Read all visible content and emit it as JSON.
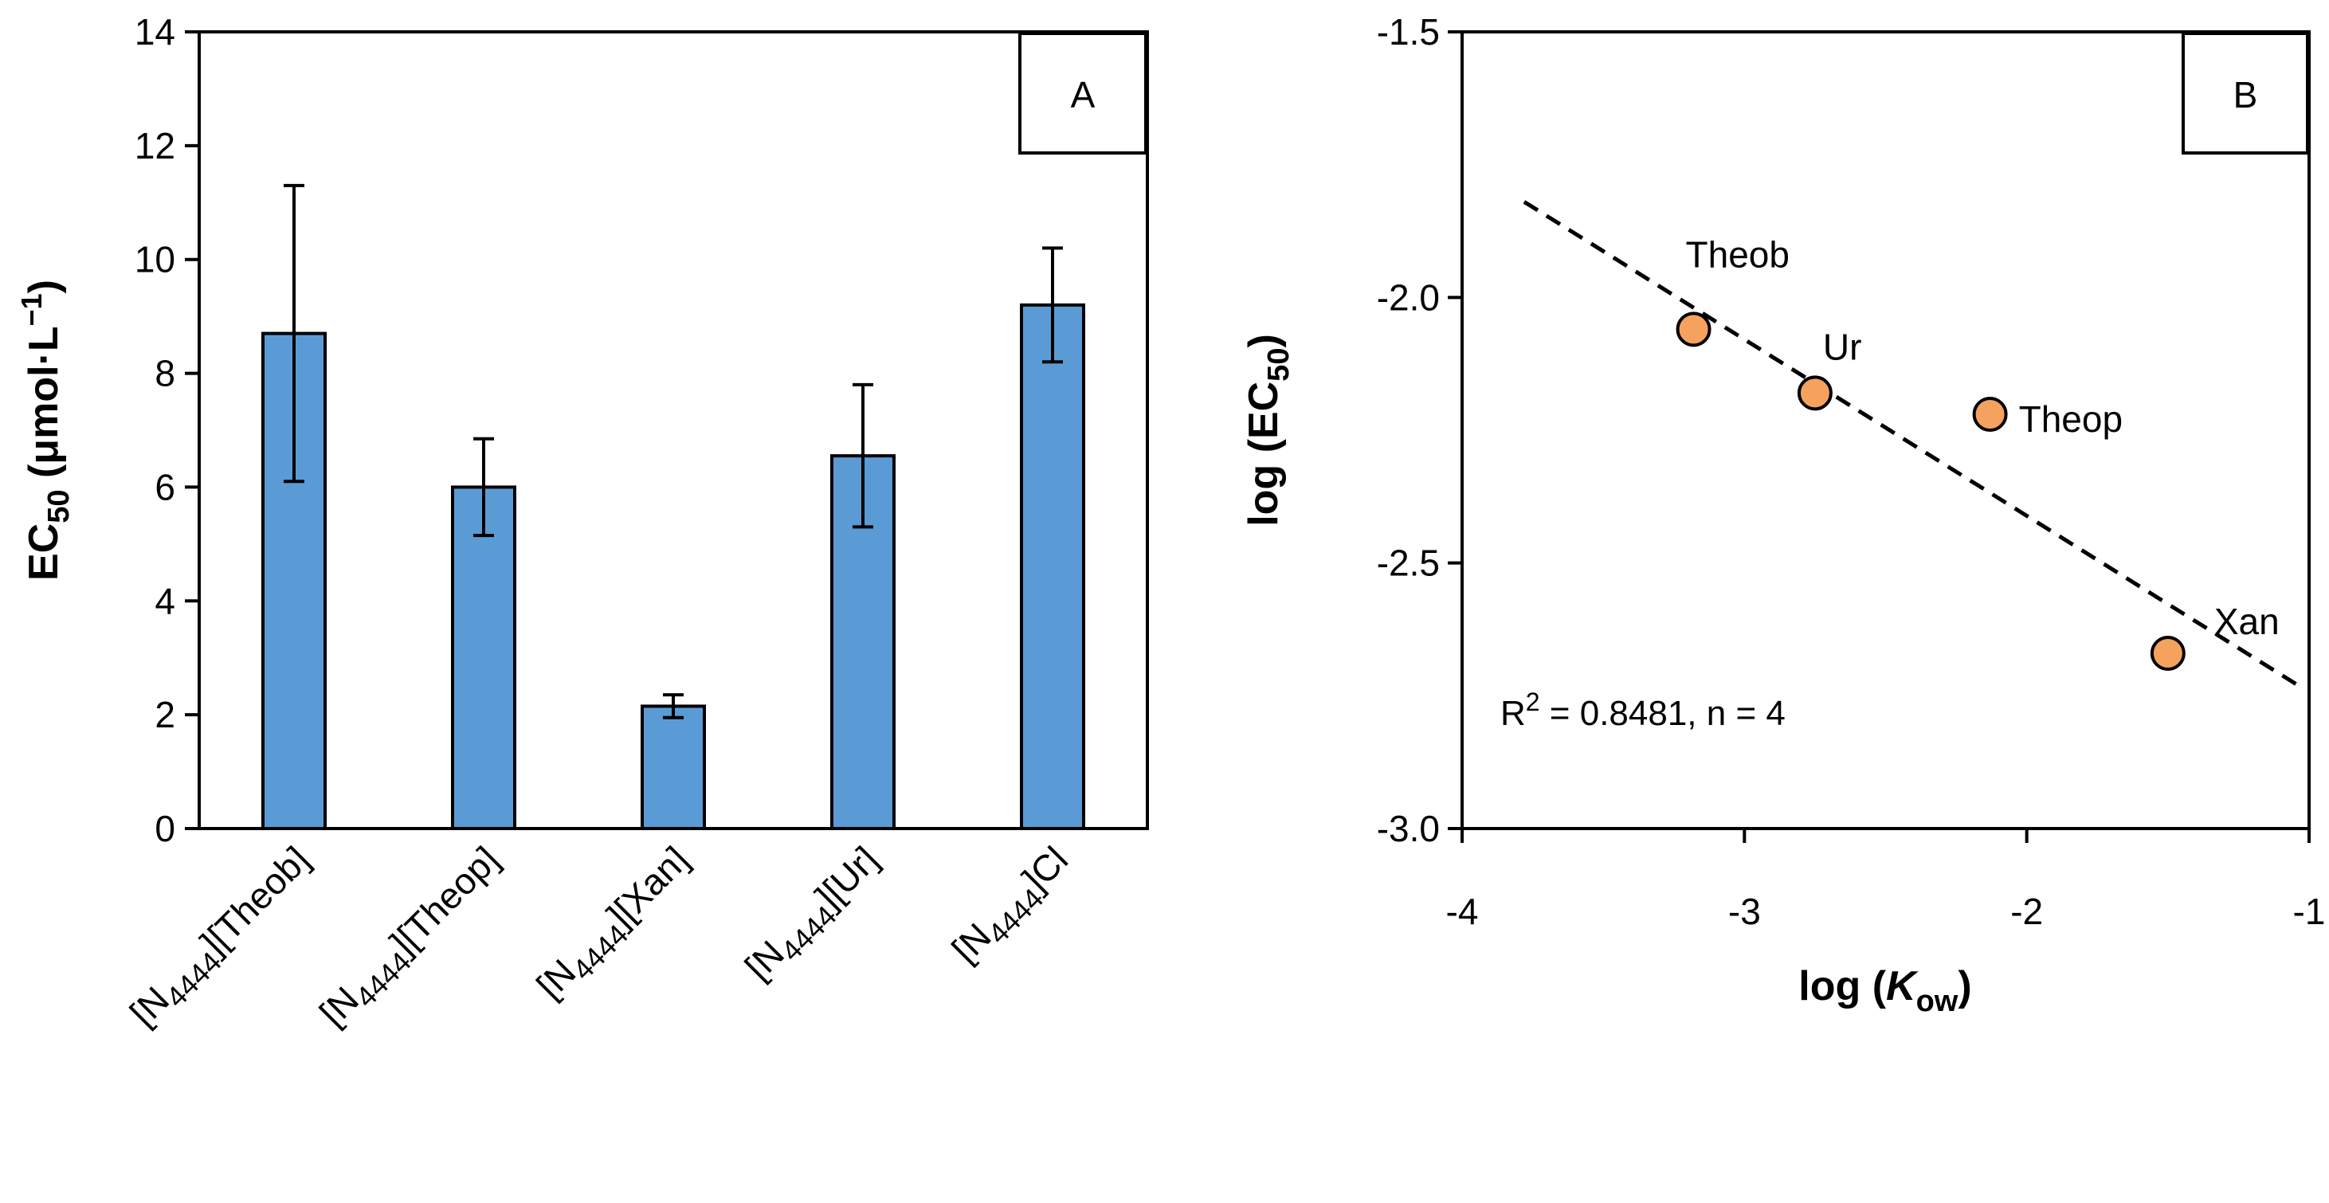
{
  "colors": {
    "bar_fill": "#5b9bd5",
    "bar_stroke": "#000000",
    "point_fill": "#f4a25e",
    "point_stroke": "#000000",
    "trend": "#000000"
  },
  "chart_data": [
    {
      "panel": "A",
      "type": "bar",
      "ylabel": {
        "main": "EC",
        "sub": "50",
        "rest": " (μmol·L",
        "sup": "−1",
        "close": ")"
      },
      "ylim": [
        0,
        14
      ],
      "yticks": [
        0,
        2,
        4,
        6,
        8,
        10,
        12,
        14
      ],
      "categories": [
        {
          "pre": "[N",
          "sub": "4444",
          "post": "][Theob]"
        },
        {
          "pre": "[N",
          "sub": "4444",
          "post": "][Theop]"
        },
        {
          "pre": "[N",
          "sub": "4444",
          "post": "][Xan]"
        },
        {
          "pre": "[N",
          "sub": "4444",
          "post": "][Ur]"
        },
        {
          "pre": "[N",
          "sub": "4444",
          "post": "]Cl"
        }
      ],
      "values": [
        8.7,
        6.0,
        2.15,
        6.55,
        9.2
      ],
      "errors": [
        2.6,
        0.85,
        0.2,
        1.25,
        1.0
      ],
      "grid": false
    },
    {
      "panel": "B",
      "type": "scatter",
      "xlabel": {
        "pre": "log (",
        "italic": "K",
        "sub": "ow",
        "post": ")"
      },
      "ylabel": {
        "pre": "log (EC",
        "sub": "50",
        "post": ")"
      },
      "xlim": [
        -4,
        -1
      ],
      "ylim": [
        -3.0,
        -1.5
      ],
      "xticks": [
        -4,
        -3,
        -2,
        -1
      ],
      "yticks": [
        -3.0,
        -2.5,
        -2.0,
        -1.5
      ],
      "ytick_labels": [
        "-3.0",
        "-2.5",
        "-2.0",
        "-1.5"
      ],
      "points": [
        {
          "label": "Theob",
          "x": -3.18,
          "y": -2.06
        },
        {
          "label": "Ur",
          "x": -2.75,
          "y": -2.18
        },
        {
          "label": "Theop",
          "x": -2.13,
          "y": -2.22
        },
        {
          "label": "Xan",
          "x": -1.5,
          "y": -2.67
        }
      ],
      "trendline": {
        "x": [
          -3.78,
          -1.04
        ],
        "y": [
          -1.82,
          -2.73
        ]
      },
      "annotation": {
        "pre": "R",
        "sup": "2",
        "post": " = 0.8481, n = 4"
      },
      "grid": false
    }
  ]
}
